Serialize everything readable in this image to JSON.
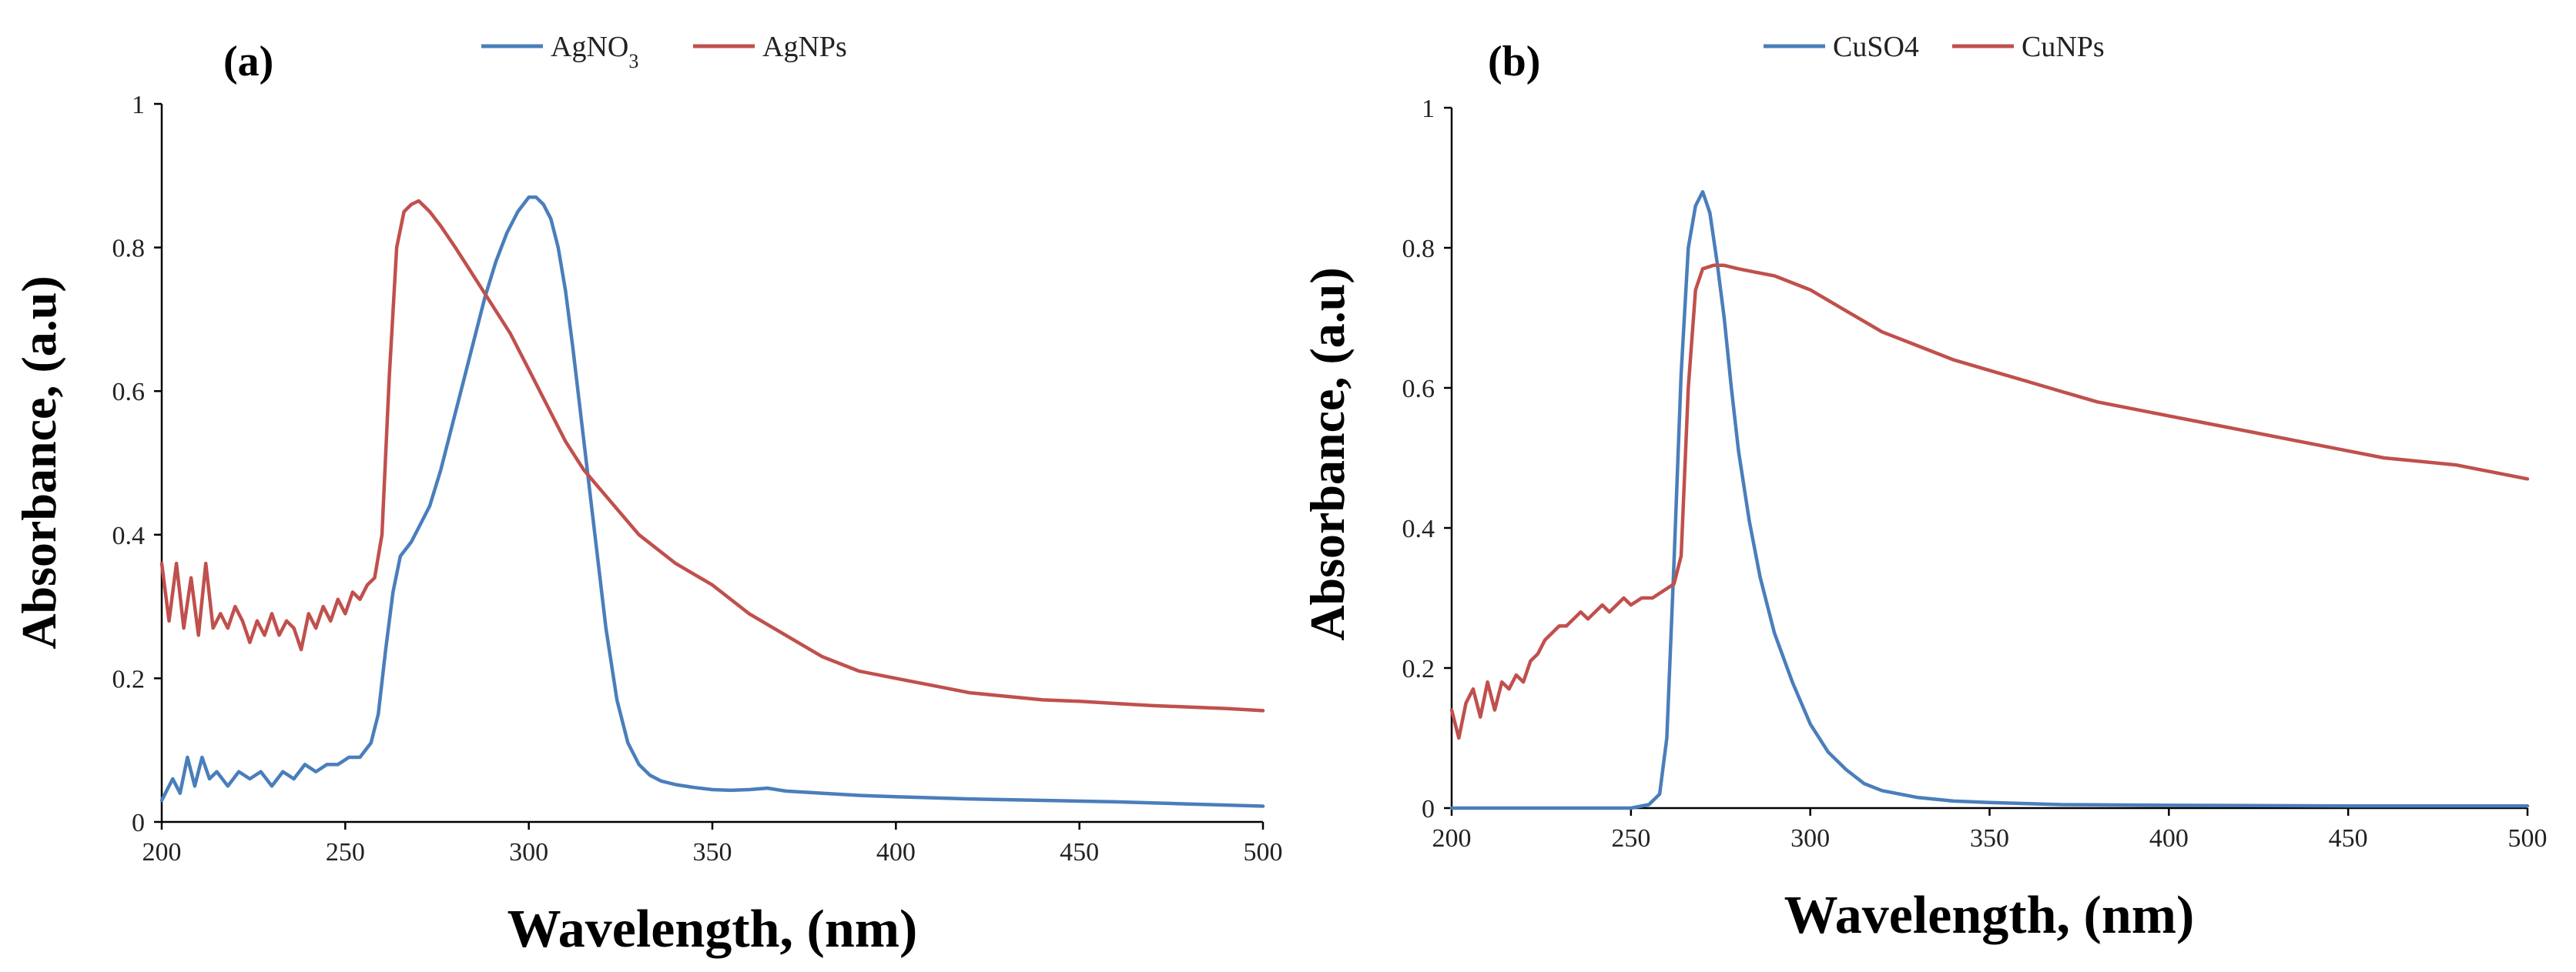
{
  "chart_data": [
    {
      "type": "line",
      "panel_label": "(a)",
      "xlabel": "Wavelength, (nm)",
      "ylabel": "Absorbance, (a.u)",
      "xlim": [
        200,
        500
      ],
      "ylim": [
        0,
        1
      ],
      "xticks": [
        "200",
        "250",
        "300",
        "350",
        "400",
        "450",
        "500"
      ],
      "yticks": [
        "0",
        "0.2",
        "0.4",
        "0.6",
        "0.8",
        "1"
      ],
      "legend": {
        "placement": "top-center"
      },
      "series": [
        {
          "name": "AgNO",
          "name_sub": "3",
          "color": "#4a7ebb",
          "x": [
            200,
            203,
            205,
            207,
            209,
            211,
            213,
            215,
            218,
            221,
            224,
            227,
            230,
            233,
            236,
            239,
            242,
            245,
            248,
            251,
            254,
            257,
            259,
            261,
            263,
            265,
            268,
            270,
            273,
            276,
            279,
            282,
            285,
            288,
            291,
            294,
            297,
            300,
            302,
            304,
            306,
            308,
            310,
            312,
            315,
            318,
            321,
            324,
            327,
            330,
            333,
            336,
            340,
            345,
            350,
            355,
            360,
            365,
            370,
            380,
            390,
            400,
            420,
            440,
            460,
            480,
            500
          ],
          "y": [
            0.03,
            0.06,
            0.04,
            0.09,
            0.05,
            0.09,
            0.06,
            0.07,
            0.05,
            0.07,
            0.06,
            0.07,
            0.05,
            0.07,
            0.06,
            0.08,
            0.07,
            0.08,
            0.08,
            0.09,
            0.09,
            0.11,
            0.15,
            0.24,
            0.32,
            0.37,
            0.39,
            0.41,
            0.44,
            0.49,
            0.55,
            0.61,
            0.67,
            0.73,
            0.78,
            0.82,
            0.85,
            0.87,
            0.87,
            0.86,
            0.84,
            0.8,
            0.74,
            0.66,
            0.53,
            0.4,
            0.27,
            0.17,
            0.11,
            0.08,
            0.065,
            0.057,
            0.052,
            0.048,
            0.045,
            0.044,
            0.045,
            0.047,
            0.043,
            0.04,
            0.037,
            0.035,
            0.032,
            0.03,
            0.028,
            0.025,
            0.022
          ]
        },
        {
          "name": "AgNPs",
          "name_sub": "",
          "color": "#c0504d",
          "x": [
            200,
            202,
            204,
            206,
            208,
            210,
            212,
            214,
            216,
            218,
            220,
            222,
            224,
            226,
            228,
            230,
            232,
            234,
            236,
            238,
            240,
            242,
            244,
            246,
            248,
            250,
            252,
            254,
            256,
            258,
            260,
            262,
            264,
            266,
            268,
            270,
            273,
            276,
            280,
            285,
            290,
            295,
            300,
            305,
            310,
            315,
            320,
            325,
            330,
            340,
            350,
            360,
            370,
            380,
            390,
            400,
            410,
            420,
            430,
            440,
            450,
            460,
            470,
            480,
            490,
            500
          ],
          "y": [
            0.36,
            0.28,
            0.36,
            0.27,
            0.34,
            0.26,
            0.36,
            0.27,
            0.29,
            0.27,
            0.3,
            0.28,
            0.25,
            0.28,
            0.26,
            0.29,
            0.26,
            0.28,
            0.27,
            0.24,
            0.29,
            0.27,
            0.3,
            0.28,
            0.31,
            0.29,
            0.32,
            0.31,
            0.33,
            0.34,
            0.4,
            0.62,
            0.8,
            0.85,
            0.86,
            0.865,
            0.85,
            0.83,
            0.8,
            0.76,
            0.72,
            0.68,
            0.63,
            0.58,
            0.53,
            0.49,
            0.46,
            0.43,
            0.4,
            0.36,
            0.33,
            0.29,
            0.26,
            0.23,
            0.21,
            0.2,
            0.19,
            0.18,
            0.175,
            0.17,
            0.168,
            0.165,
            0.162,
            0.16,
            0.158,
            0.155
          ]
        }
      ]
    },
    {
      "type": "line",
      "panel_label": "(b)",
      "xlabel": "Wavelength, (nm)",
      "ylabel": "Absorbance, (a.u)",
      "xlim": [
        200,
        500
      ],
      "ylim": [
        0,
        1
      ],
      "xticks": [
        "200",
        "250",
        "300",
        "350",
        "400",
        "450",
        "500"
      ],
      "yticks": [
        "0",
        "0.2",
        "0.4",
        "0.6",
        "0.8",
        "1"
      ],
      "legend": {
        "placement": "top-center"
      },
      "series": [
        {
          "name": "CuSO4",
          "name_sub": "",
          "color": "#4a7ebb",
          "x": [
            200,
            250,
            255,
            258,
            260,
            262,
            264,
            266,
            268,
            270,
            272,
            274,
            276,
            278,
            280,
            283,
            286,
            290,
            295,
            300,
            305,
            310,
            315,
            320,
            330,
            340,
            350,
            370,
            400,
            450,
            500
          ],
          "y": [
            0,
            0,
            0.005,
            0.02,
            0.1,
            0.35,
            0.62,
            0.8,
            0.86,
            0.88,
            0.85,
            0.78,
            0.7,
            0.6,
            0.51,
            0.41,
            0.33,
            0.25,
            0.18,
            0.12,
            0.08,
            0.055,
            0.035,
            0.025,
            0.015,
            0.01,
            0.008,
            0.005,
            0.004,
            0.003,
            0.003
          ]
        },
        {
          "name": "CuNPs",
          "name_sub": "",
          "color": "#c0504d",
          "x": [
            200,
            202,
            204,
            206,
            208,
            210,
            212,
            214,
            216,
            218,
            220,
            222,
            224,
            226,
            228,
            230,
            232,
            234,
            236,
            238,
            240,
            242,
            244,
            246,
            248,
            250,
            253,
            256,
            259,
            262,
            264,
            266,
            268,
            270,
            273,
            276,
            280,
            285,
            290,
            295,
            300,
            310,
            320,
            330,
            340,
            350,
            360,
            370,
            380,
            390,
            400,
            410,
            420,
            430,
            440,
            450,
            460,
            470,
            480,
            490,
            500
          ],
          "y": [
            0.14,
            0.1,
            0.15,
            0.17,
            0.13,
            0.18,
            0.14,
            0.18,
            0.17,
            0.19,
            0.18,
            0.21,
            0.22,
            0.24,
            0.25,
            0.26,
            0.26,
            0.27,
            0.28,
            0.27,
            0.28,
            0.29,
            0.28,
            0.29,
            0.3,
            0.29,
            0.3,
            0.3,
            0.31,
            0.32,
            0.36,
            0.6,
            0.74,
            0.77,
            0.775,
            0.775,
            0.77,
            0.765,
            0.76,
            0.75,
            0.74,
            0.71,
            0.68,
            0.66,
            0.64,
            0.625,
            0.61,
            0.595,
            0.58,
            0.57,
            0.56,
            0.55,
            0.54,
            0.53,
            0.52,
            0.51,
            0.5,
            0.495,
            0.49,
            0.48,
            0.47
          ]
        }
      ]
    }
  ]
}
